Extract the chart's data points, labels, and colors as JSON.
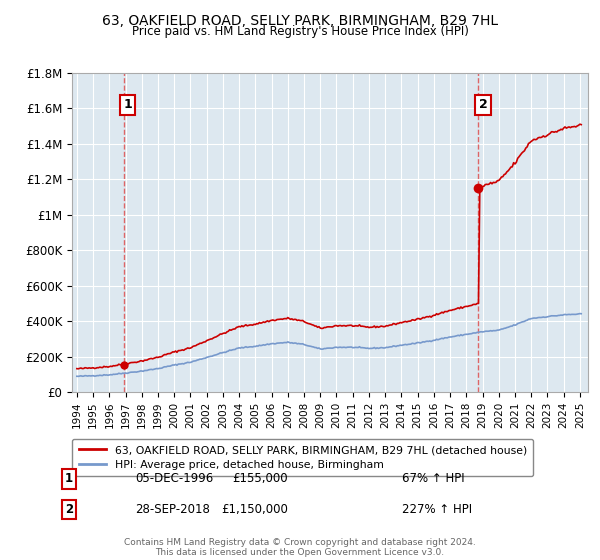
{
  "title": "63, OAKFIELD ROAD, SELLY PARK, BIRMINGHAM, B29 7HL",
  "subtitle": "Price paid vs. HM Land Registry's House Price Index (HPI)",
  "sale1_year": 1996.92,
  "sale1_price": 155000,
  "sale1_label": "1",
  "sale1_date": "05-DEC-1996",
  "sale1_price_str": "£155,000",
  "sale1_hpi": "67% ↑ HPI",
  "sale2_year": 2018.75,
  "sale2_price": 1150000,
  "sale2_label": "2",
  "sale2_date": "28-SEP-2018",
  "sale2_price_str": "£1,150,000",
  "sale2_hpi": "227% ↑ HPI",
  "footer": "Contains HM Land Registry data © Crown copyright and database right 2024.\nThis data is licensed under the Open Government Licence v3.0.",
  "legend_sale": "63, OAKFIELD ROAD, SELLY PARK, BIRMINGHAM, B29 7HL (detached house)",
  "legend_hpi": "HPI: Average price, detached house, Birmingham",
  "ylim": [
    0,
    1800000
  ],
  "xlim_start": 1993.7,
  "xlim_end": 2025.5,
  "sale_color": "#cc0000",
  "hpi_color": "#7799cc",
  "vline_color": "#dd4444",
  "bg_color": "#dde8f0",
  "grid_color": "#ffffff",
  "yticks": [
    0,
    200000,
    400000,
    600000,
    800000,
    1000000,
    1200000,
    1400000,
    1600000,
    1800000
  ],
  "ytick_labels": [
    "£0",
    "£200K",
    "£400K",
    "£600K",
    "£800K",
    "£1M",
    "£1.2M",
    "£1.4M",
    "£1.6M",
    "£1.8M"
  ],
  "xticks": [
    1994,
    1995,
    1996,
    1997,
    1998,
    1999,
    2000,
    2001,
    2002,
    2003,
    2004,
    2005,
    2006,
    2007,
    2008,
    2009,
    2010,
    2011,
    2012,
    2013,
    2014,
    2015,
    2016,
    2017,
    2018,
    2019,
    2020,
    2021,
    2022,
    2023,
    2024,
    2025
  ]
}
